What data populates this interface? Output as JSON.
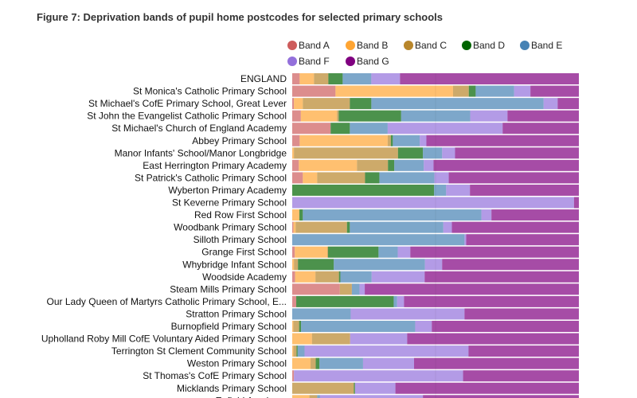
{
  "chart_data": {
    "type": "bar",
    "orientation": "horizontal",
    "stacked": "percent",
    "title": "Figure 7: Deprivation bands of pupil home postcodes for selected primary schools",
    "legend_position": "top",
    "grid": false,
    "xlim": [
      0,
      100
    ],
    "categories": [
      "ENGLAND",
      "St Monica's Catholic Primary School",
      "St Michael's CofE Primary School, Great Lever",
      "St John the Evangelist Catholic Primary School",
      "St Michael's Church of England Academy",
      "Abbey Primary School",
      "Manor Infants' School/Manor Longbridge",
      "East Herrington Primary Academy",
      "St Patrick's Catholic Primary School",
      "Wyberton Primary Academy",
      "St Keverne Primary School",
      "Red Row First School",
      "Woodbank Primary School",
      "Silloth Primary School",
      "Grange First School",
      "Whybridge Infant School",
      "Woodside Academy",
      "Steam Mills Primary School",
      "Our Lady Queen of Martyrs Catholic Primary School, E...",
      "Stratton Primary School",
      "Burnopfield Primary School",
      "Upholland Roby Mill CofE Voluntary Aided Primary School",
      "Terrington St Clement Community School",
      "Weston Primary School",
      "St Thomas's CofE Primary School",
      "Micklands Primary School",
      "Enfield Academy"
    ],
    "series": [
      {
        "name": "Band A",
        "color": "#cd5c5c",
        "values": [
          2.6,
          15.1,
          0.6,
          3,
          13.4,
          2.6,
          0,
          2.3,
          3.7,
          0,
          0,
          0,
          0.4,
          0,
          0.9,
          0,
          1,
          16.6,
          1.4,
          0,
          0,
          0,
          0,
          0,
          0.6,
          0,
          0
        ]
      },
      {
        "name": "Band B",
        "color": "#ffa533",
        "values": [
          5,
          41,
          3.1,
          12.6,
          0,
          30.7,
          0.6,
          20.3,
          5,
          0,
          0,
          2.5,
          0.8,
          0,
          11.3,
          0.6,
          7.1,
          0,
          0,
          0,
          0.4,
          6.9,
          0.4,
          6.4,
          0,
          0,
          6
        ]
      },
      {
        "name": "Band C",
        "color": "#b8862b",
        "values": [
          5,
          5.5,
          16.4,
          0.6,
          0,
          1.1,
          36.3,
          10.8,
          16.7,
          0,
          0,
          0,
          17.9,
          0,
          0.3,
          1.4,
          8.2,
          4.2,
          0,
          0,
          2,
          13.3,
          1.1,
          1.8,
          0,
          21.5,
          2.7
        ]
      },
      {
        "name": "Band D",
        "color": "#006400",
        "values": [
          5,
          2.4,
          7.5,
          21.8,
          6.7,
          0.7,
          8.7,
          2.2,
          5,
          49.5,
          0,
          1.2,
          1,
          0,
          17.6,
          12.5,
          0.5,
          0,
          34,
          0,
          0.7,
          0,
          0.4,
          1.3,
          0,
          0.4,
          0
        ]
      },
      {
        "name": "Band E",
        "color": "#4682b4",
        "values": [
          10,
          13.4,
          60.1,
          24.1,
          13.2,
          9.4,
          6.7,
          10.3,
          19.2,
          4.2,
          0,
          62.3,
          32.6,
          60.1,
          6.7,
          31.8,
          10.9,
          2.7,
          1.2,
          20.4,
          39.8,
          0,
          2.4,
          15.2,
          0,
          0,
          1
        ]
      },
      {
        "name": "Band F",
        "color": "#9370db",
        "values": [
          10,
          5.7,
          4.9,
          13,
          40.1,
          2.3,
          4.5,
          3.4,
          5,
          8.3,
          98.3,
          3.5,
          3,
          0.6,
          4.4,
          6,
          18.5,
          1.8,
          2.4,
          39.7,
          5.8,
          19.9,
          57.2,
          17.8,
          59,
          14.1,
          35.9
        ]
      },
      {
        "name": "Band G",
        "color": "#800080",
        "values": [
          62.4,
          16.9,
          7.4,
          24.9,
          26.6,
          53.2,
          43.2,
          50.7,
          45.4,
          38,
          1.7,
          30.5,
          44.3,
          39.3,
          58.8,
          47.7,
          53.8,
          74.7,
          61,
          39.9,
          51.3,
          59.9,
          38.5,
          57.5,
          40.4,
          64,
          54.4
        ]
      }
    ]
  }
}
